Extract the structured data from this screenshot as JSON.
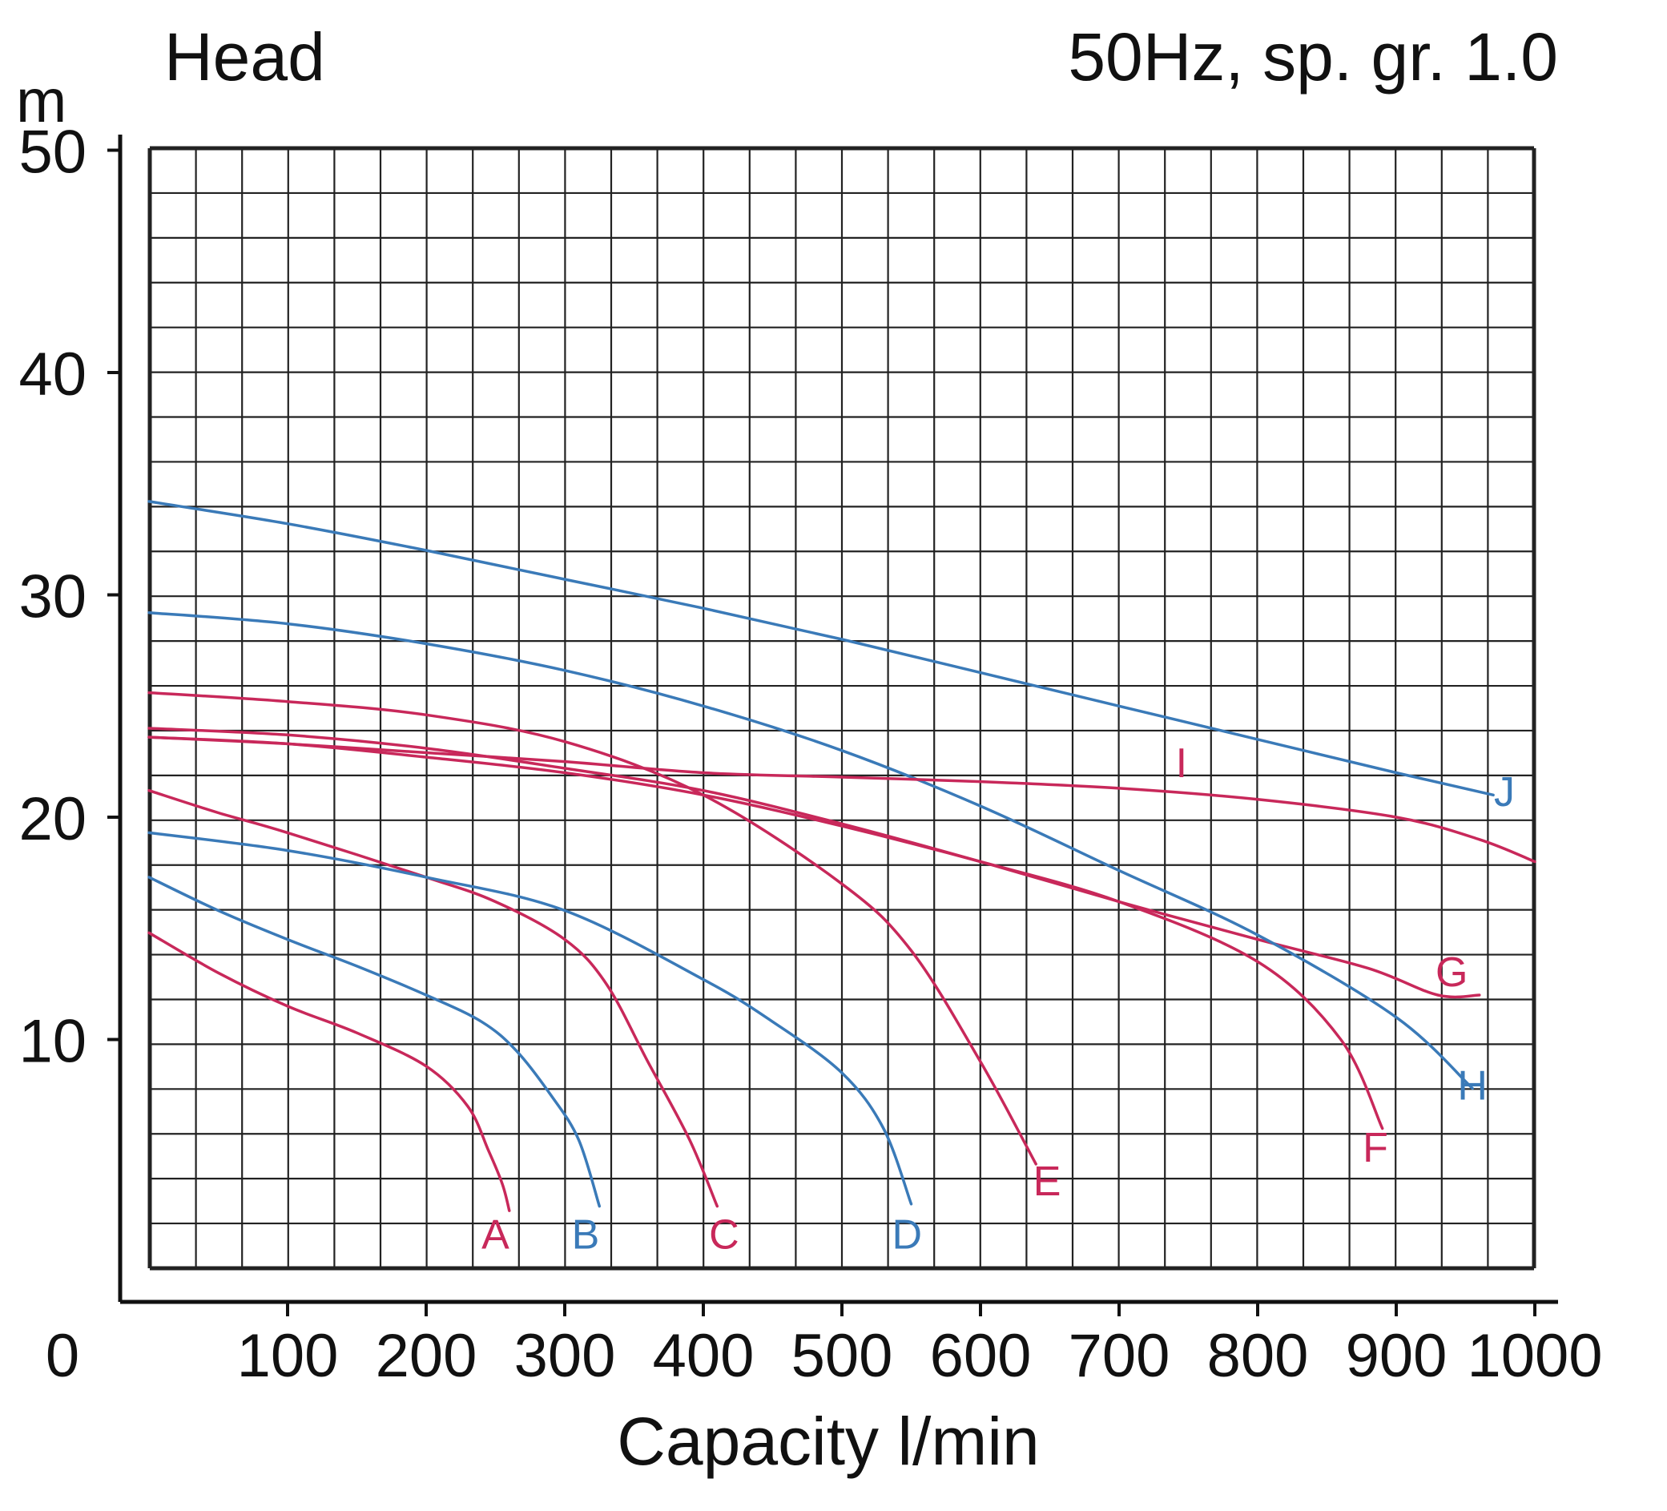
{
  "chart_data": {
    "type": "line",
    "title_left": "Head",
    "title_right": "50Hz, sp. gr. 1.0",
    "y_unit": "m",
    "xlabel": "Capacity l/min",
    "origin_label": "0",
    "xlim": [
      0,
      1000
    ],
    "ylim": [
      0,
      50
    ],
    "x_ticks": [
      "100",
      "200",
      "300",
      "400",
      "500",
      "600",
      "700",
      "800",
      "900",
      "1000"
    ],
    "y_ticks": [
      "10",
      "20",
      "30",
      "40",
      "50"
    ],
    "grid": true,
    "colors": {
      "red": "#c8285a",
      "blue": "#3a7ab8"
    },
    "series": [
      {
        "name": "A",
        "color": "red",
        "label_at": [
          250,
          0.6
        ],
        "x": [
          0,
          50,
          100,
          150,
          200,
          230,
          245,
          255,
          260
        ],
        "y": [
          14.8,
          13.0,
          11.5,
          10.3,
          8.8,
          7.0,
          5.0,
          3.5,
          2.3
        ]
      },
      {
        "name": "B",
        "color": "blue",
        "label_at": [
          315,
          0.6
        ],
        "x": [
          0,
          50,
          100,
          150,
          200,
          240,
          265,
          290,
          310,
          325
        ],
        "y": [
          17.3,
          15.8,
          14.5,
          13.3,
          12.0,
          10.8,
          9.5,
          7.5,
          5.5,
          2.5
        ]
      },
      {
        "name": "C",
        "color": "red",
        "label_at": [
          415,
          0.6
        ],
        "x": [
          0,
          50,
          100,
          200,
          250,
          300,
          330,
          360,
          390,
          410
        ],
        "y": [
          21.2,
          20.2,
          19.3,
          17.3,
          16.2,
          14.5,
          12.5,
          9.0,
          5.5,
          2.5
        ]
      },
      {
        "name": "D",
        "color": "blue",
        "label_at": [
          547,
          0.6
        ],
        "x": [
          0,
          100,
          200,
          300,
          400,
          450,
          500,
          530,
          550
        ],
        "y": [
          19.3,
          18.5,
          17.3,
          15.8,
          12.7,
          10.8,
          8.5,
          6.0,
          2.6
        ]
      },
      {
        "name": "E",
        "color": "red",
        "label_at": [
          648,
          3.0
        ],
        "x": [
          0,
          100,
          200,
          300,
          400,
          500,
          550,
          600,
          640
        ],
        "y": [
          25.6,
          25.2,
          24.6,
          23.4,
          21.0,
          17.0,
          14.0,
          9.0,
          4.4
        ]
      },
      {
        "name": "F",
        "color": "red",
        "label_at": [
          885,
          4.5
        ],
        "x": [
          0,
          100,
          200,
          300,
          400,
          500,
          600,
          700,
          800,
          860,
          890
        ],
        "y": [
          23.6,
          23.3,
          22.7,
          22.0,
          21.0,
          19.6,
          18.0,
          16.2,
          13.5,
          10.0,
          6.0
        ]
      },
      {
        "name": "G",
        "color": "red",
        "label_at": [
          940,
          12.4
        ],
        "x": [
          0,
          100,
          200,
          300,
          400,
          500,
          600,
          700,
          800,
          880,
          930,
          960
        ],
        "y": [
          24.0,
          23.7,
          23.1,
          22.2,
          21.2,
          19.7,
          18.0,
          16.2,
          14.5,
          13.2,
          12.0,
          12.0
        ]
      },
      {
        "name": "H",
        "color": "blue",
        "label_at": [
          955,
          7.3
        ],
        "x": [
          0,
          100,
          200,
          300,
          400,
          500,
          600,
          700,
          800,
          900,
          955
        ],
        "y": [
          29.2,
          28.7,
          27.8,
          26.6,
          25.0,
          23.0,
          20.5,
          17.6,
          14.7,
          11.0,
          7.8
        ]
      },
      {
        "name": "I",
        "color": "red",
        "label_at": [
          745,
          21.8
        ],
        "x": [
          0,
          100,
          200,
          300,
          400,
          500,
          600,
          700,
          800,
          900,
          960,
          1000
        ],
        "y": [
          23.6,
          23.3,
          22.9,
          22.5,
          22.0,
          21.8,
          21.6,
          21.3,
          20.8,
          20.0,
          19.0,
          18.0
        ]
      },
      {
        "name": "J",
        "color": "blue",
        "label_at": [
          978,
          20.5
        ],
        "x": [
          0,
          100,
          200,
          300,
          400,
          500,
          600,
          700,
          800,
          900,
          970
        ],
        "y": [
          34.2,
          33.2,
          32.0,
          30.7,
          29.4,
          28.0,
          26.5,
          25.0,
          23.5,
          22.0,
          21.0
        ]
      }
    ]
  }
}
